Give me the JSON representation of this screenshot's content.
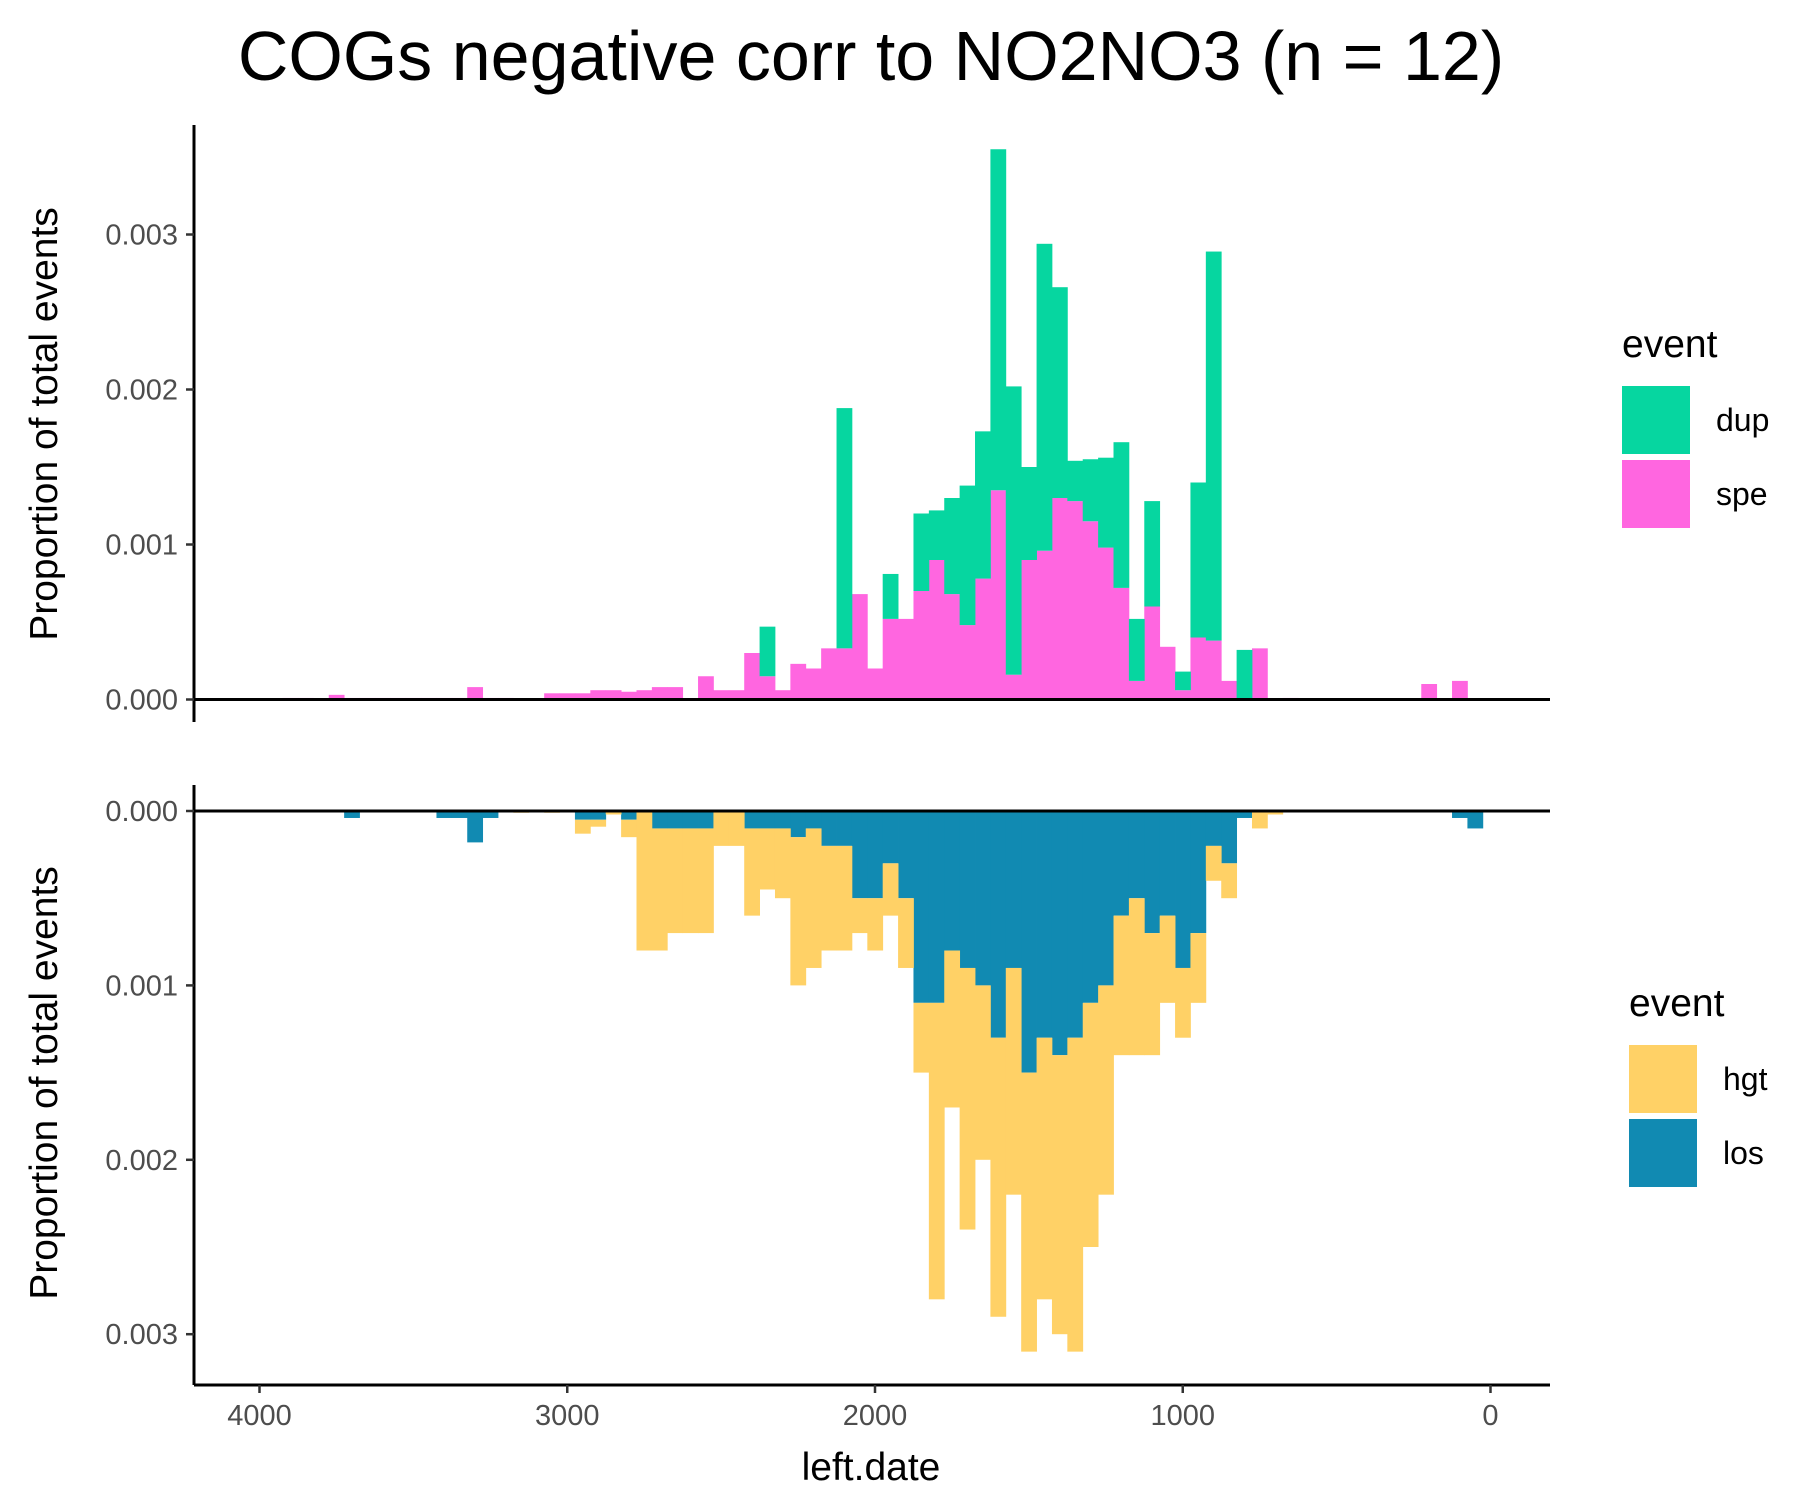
{
  "chart_data": {
    "title": "COGs negative corr to NO2NO3 (n = 12)",
    "xlabel": "left.date",
    "x_ticks": [
      "4000",
      "3000",
      "2000",
      "1000",
      "0"
    ],
    "xlim_reversed": [
      4200,
      -200
    ],
    "bin_width": 50,
    "x": [
      3900,
      3850,
      3800,
      3750,
      3700,
      3650,
      3600,
      3550,
      3500,
      3450,
      3400,
      3350,
      3300,
      3250,
      3200,
      3150,
      3100,
      3050,
      3000,
      2950,
      2900,
      2850,
      2800,
      2750,
      2700,
      2650,
      2600,
      2550,
      2500,
      2450,
      2400,
      2350,
      2300,
      2250,
      2200,
      2150,
      2100,
      2050,
      2000,
      1950,
      1900,
      1850,
      1800,
      1750,
      1700,
      1650,
      1600,
      1550,
      1500,
      1450,
      1400,
      1350,
      1300,
      1250,
      1200,
      1150,
      1100,
      1050,
      1000,
      950,
      900,
      850,
      800,
      750,
      700,
      650,
      600,
      550,
      500,
      450,
      400,
      350,
      300,
      250,
      200,
      150,
      100,
      50,
      0
    ],
    "panels": [
      {
        "type": "bar",
        "stacked": true,
        "ylabel": "Proportion of total events",
        "y_ticks": [
          "0.000",
          "0.001",
          "0.002",
          "0.003"
        ],
        "ylim": [
          -0.00016,
          0.0037
        ],
        "direction": "up",
        "legend": {
          "title": "event",
          "position": "right"
        },
        "series": [
          {
            "name": "spe",
            "color": "#FF66E0",
            "values": [
              1e-05,
              1e-05,
              0,
              3e-05,
              1e-05,
              1e-05,
              1e-05,
              1e-05,
              1e-05,
              1e-05,
              1e-05,
              1e-05,
              8e-05,
              1e-05,
              1e-05,
              0,
              0,
              4e-05,
              4e-05,
              4e-05,
              6e-05,
              6e-05,
              5e-05,
              6e-05,
              8e-05,
              8e-05,
              0,
              0.00015,
              6e-05,
              6e-05,
              0.0003,
              0.00015,
              6e-05,
              0.00023,
              0.0002,
              0.00033,
              0.00033,
              0.00068,
              0.0002,
              0.00052,
              0.00052,
              0.0007,
              0.0009,
              0.00068,
              0.00048,
              0.00078,
              0.00135,
              0.00016,
              0.0009,
              0.00096,
              0.0013,
              0.00128,
              0.00115,
              0.00098,
              0.00072,
              0.00012,
              0.0006,
              0.00034,
              6e-05,
              0.0004,
              0.00038,
              0.00012,
              0,
              0.00033,
              0,
              1e-05,
              0,
              0,
              0,
              0,
              0,
              0,
              0,
              0,
              0.0001,
              0,
              0.00012,
              0,
              0
            ]
          },
          {
            "name": "dup",
            "color": "#06D6A0",
            "values": [
              0,
              0,
              0,
              0,
              0,
              0,
              0,
              0,
              0,
              0,
              0,
              0,
              0,
              0,
              0,
              0,
              0,
              0,
              0,
              0,
              0,
              0,
              0,
              0,
              0,
              0,
              0,
              0,
              0,
              0,
              0,
              0.00032,
              0,
              0,
              0,
              0,
              0.00155,
              0,
              0,
              0.00029,
              0,
              0.0005,
              0.00032,
              0.00062,
              0.0009,
              0.00095,
              0.0022,
              0.00186,
              0.0006,
              0.00198,
              0.00136,
              0.00026,
              0.0004,
              0.00058,
              0.00094,
              0.0004,
              0.00068,
              0,
              0.00012,
              0.001,
              0.00251,
              0,
              0.00032,
              0,
              0,
              0,
              0,
              0,
              0,
              0,
              0,
              0,
              0,
              0,
              0,
              0,
              0,
              0,
              0
            ]
          }
        ]
      },
      {
        "type": "bar",
        "stacked": true,
        "ylabel": "Proportion of total events",
        "y_ticks": [
          "0.000",
          "0.001",
          "0.002",
          "0.003"
        ],
        "ylim": [
          -5e-05,
          0.0033
        ],
        "direction": "down",
        "legend": {
          "title": "event",
          "position": "right"
        },
        "series": [
          {
            "name": "los",
            "color": "#118AB2",
            "values": [
              0,
              0,
              0,
              0,
              4e-05,
              0,
              0,
              0,
              0,
              0,
              4e-05,
              4e-05,
              0.00018,
              4e-05,
              0,
              0,
              0,
              0,
              0,
              5e-05,
              5e-05,
              0,
              5e-05,
              0,
              0.0001,
              0.0001,
              0.0001,
              0.0001,
              0,
              0,
              0.0001,
              0.0001,
              0.0001,
              0.00015,
              0.0001,
              0.0002,
              0.0002,
              0.0005,
              0.0005,
              0.0003,
              0.0005,
              0.0011,
              0.0011,
              0.0008,
              0.0009,
              0.001,
              0.0013,
              0.0009,
              0.0015,
              0.0013,
              0.0014,
              0.0013,
              0.0011,
              0.001,
              0.0006,
              0.0005,
              0.0007,
              0.0006,
              0.0009,
              0.0007,
              0.0002,
              0.0003,
              4e-05,
              0,
              0,
              0,
              0,
              0,
              0,
              0,
              0,
              0,
              0,
              0,
              0,
              0,
              4e-05,
              0.0001,
              0
            ]
          },
          {
            "name": "hgt",
            "color": "#FFD166",
            "values": [
              0,
              0,
              0,
              0,
              0,
              0,
              0,
              0,
              0,
              0,
              0,
              0,
              0,
              0,
              0,
              1e-05,
              0,
              1e-05,
              0,
              8e-05,
              4e-05,
              2e-05,
              0.0001,
              0.0008,
              0.0007,
              0.0006,
              0.0006,
              0.0006,
              0.0002,
              0.0002,
              0.0005,
              0.00035,
              0.0004,
              0.00085,
              0.0008,
              0.0006,
              0.0006,
              0.0002,
              0.0003,
              0.0003,
              0.0004,
              0.0004,
              0.0017,
              0.0009,
              0.0015,
              0.001,
              0.0016,
              0.0013,
              0.0016,
              0.0015,
              0.0016,
              0.0018,
              0.0014,
              0.0012,
              0.0008,
              0.0009,
              0.0007,
              0.0005,
              0.0004,
              0.0004,
              0.0002,
              0.0002,
              0,
              0.0001,
              2e-05,
              0,
              0,
              0,
              0,
              0,
              0,
              0,
              0,
              0,
              0,
              0,
              0,
              0,
              0
            ]
          }
        ]
      }
    ]
  }
}
